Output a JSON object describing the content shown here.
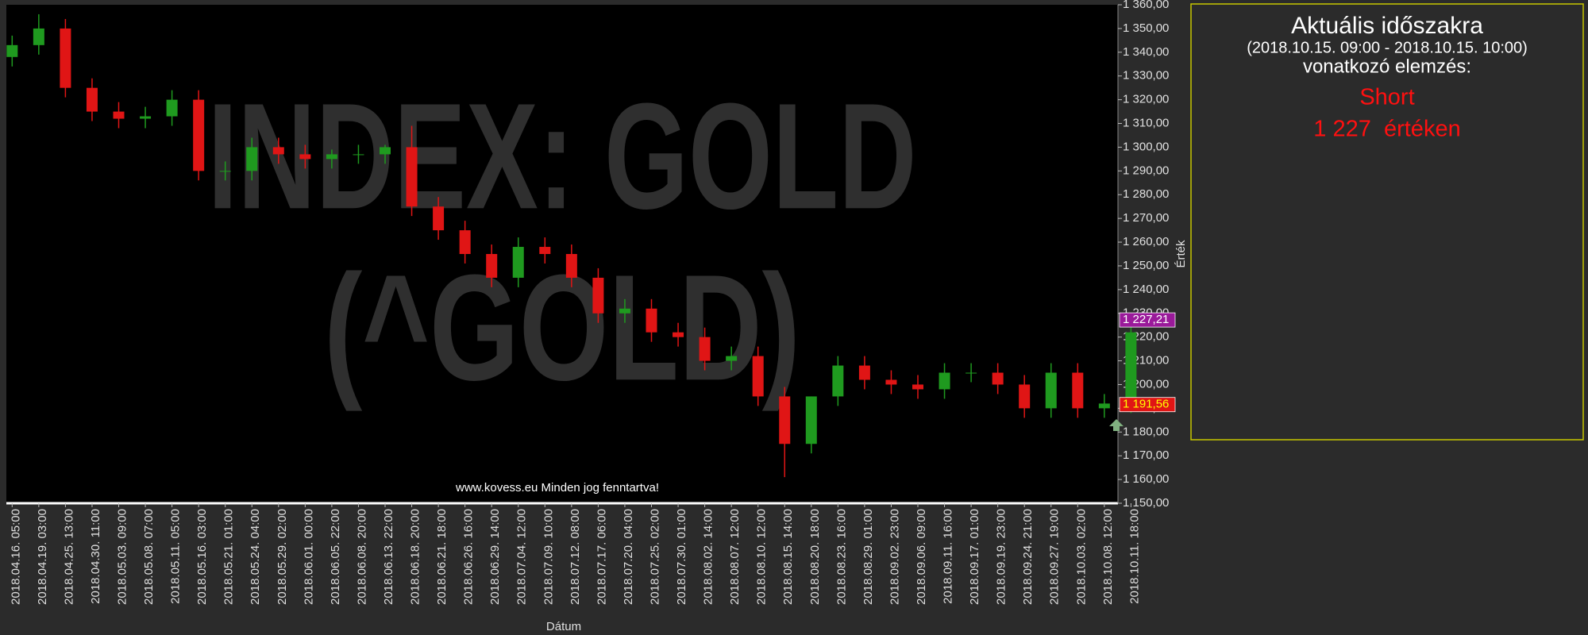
{
  "chart_data": {
    "type": "candlestick",
    "watermark": [
      "INDEX: GOLD",
      "(^GOLD)"
    ],
    "copyright": "www.kovess.eu Minden jog fenntartva!",
    "x_label": "Dátum",
    "y_label": "Érték",
    "categories": [
      "2018.04.16. 05:00",
      "2018.04.19. 03:00",
      "2018.04.25. 13:00",
      "2018.04.30. 11:00",
      "2018.05.03. 09:00",
      "2018.05.08. 07:00",
      "2018.05.11. 05:00",
      "2018.05.16. 03:00",
      "2018.05.21. 01:00",
      "2018.05.24. 04:00",
      "2018.05.29. 02:00",
      "2018.06.01. 00:00",
      "2018.06.05. 22:00",
      "2018.06.08. 20:00",
      "2018.06.13. 22:00",
      "2018.06.18. 20:00",
      "2018.06.21. 18:00",
      "2018.06.26. 16:00",
      "2018.06.29. 14:00",
      "2018.07.04. 12:00",
      "2018.07.09. 10:00",
      "2018.07.12. 08:00",
      "2018.07.17. 06:00",
      "2018.07.20. 04:00",
      "2018.07.25. 02:00",
      "2018.07.30. 01:00",
      "2018.08.02. 14:00",
      "2018.08.07. 12:00",
      "2018.08.10. 12:00",
      "2018.08.15. 14:00",
      "2018.08.20. 18:00",
      "2018.08.23. 16:00",
      "2018.08.29. 01:00",
      "2018.09.02. 23:00",
      "2018.09.06. 09:00",
      "2018.09.11. 16:00",
      "2018.09.17. 01:00",
      "2018.09.19. 23:00",
      "2018.09.24. 21:00",
      "2018.09.27. 19:00",
      "2018.10.03. 02:00",
      "2018.10.08. 12:00",
      "2018.10.11. 18:00"
    ],
    "open": [
      1338,
      1343,
      1350,
      1325,
      1315,
      1312,
      1313,
      1320,
      1290,
      1290,
      1300,
      1297,
      1295,
      1297,
      1297,
      1300,
      1275,
      1265,
      1255,
      1245,
      1258,
      1255,
      1245,
      1230,
      1232,
      1222,
      1220,
      1210,
      1212,
      1195,
      1175,
      1195,
      1208,
      1202,
      1200,
      1198,
      1205,
      1205,
      1200,
      1190,
      1205,
      1190,
      1192
    ],
    "high": [
      1347,
      1356,
      1354,
      1329,
      1319,
      1317,
      1324,
      1324,
      1294,
      1304,
      1304,
      1301,
      1299,
      1301,
      1301,
      1309,
      1279,
      1269,
      1259,
      1262,
      1262,
      1259,
      1249,
      1236,
      1236,
      1226,
      1224,
      1216,
      1216,
      1199,
      1195,
      1212,
      1212,
      1206,
      1204,
      1209,
      1209,
      1209,
      1204,
      1209,
      1209,
      1196,
      1228
    ],
    "low": [
      1334,
      1339,
      1321,
      1311,
      1308,
      1308,
      1309,
      1286,
      1286,
      1286,
      1293,
      1291,
      1291,
      1293,
      1293,
      1271,
      1261,
      1251,
      1241,
      1241,
      1251,
      1241,
      1226,
      1226,
      1218,
      1216,
      1206,
      1206,
      1191,
      1161,
      1171,
      1191,
      1198,
      1196,
      1194,
      1194,
      1201,
      1196,
      1186,
      1186,
      1186,
      1186,
      1188
    ],
    "close": [
      1343,
      1350,
      1325,
      1315,
      1312,
      1313,
      1320,
      1290,
      1290,
      1300,
      1297,
      1295,
      1297,
      1297,
      1300,
      1275,
      1265,
      1255,
      1245,
      1258,
      1255,
      1245,
      1230,
      1232,
      1222,
      1220,
      1210,
      1212,
      1195,
      1175,
      1195,
      1208,
      1202,
      1200,
      1198,
      1205,
      1205,
      1200,
      1190,
      1205,
      1190,
      1192,
      1222
    ],
    "up_color": "#1f9a1f",
    "down_color": "#e01515",
    "ylim": [
      1150,
      1360
    ],
    "yticks": [
      {
        "value": 1150,
        "label": "1 150,00"
      },
      {
        "value": 1160,
        "label": "1 160,00"
      },
      {
        "value": 1170,
        "label": "1 170,00"
      },
      {
        "value": 1180,
        "label": "1 180,00"
      },
      {
        "value": 1190,
        "label": "1 190,00"
      },
      {
        "value": 1200,
        "label": "1 200,00"
      },
      {
        "value": 1210,
        "label": "1 210,00"
      },
      {
        "value": 1220,
        "label": "1 220,00"
      },
      {
        "value": 1230,
        "label": "1 230,00"
      },
      {
        "value": 1240,
        "label": "1 240,00"
      },
      {
        "value": 1250,
        "label": "1 250,00"
      },
      {
        "value": 1260,
        "label": "1 260,00"
      },
      {
        "value": 1270,
        "label": "1 270,00"
      },
      {
        "value": 1280,
        "label": "1 280,00"
      },
      {
        "value": 1290,
        "label": "1 290,00"
      },
      {
        "value": 1300,
        "label": "1 300,00"
      },
      {
        "value": 1310,
        "label": "1 310,00"
      },
      {
        "value": 1320,
        "label": "1 320,00"
      },
      {
        "value": 1330,
        "label": "1 330,00"
      },
      {
        "value": 1340,
        "label": "1 340,00"
      },
      {
        "value": 1350,
        "label": "1 350,00"
      },
      {
        "value": 1360,
        "label": "1 360,00"
      }
    ],
    "price_tags": [
      {
        "value": 1227.21,
        "label": "1 227,21",
        "color": "#9a1a9a",
        "text_color": "#ffffff"
      },
      {
        "value": 1191.56,
        "label": "1 191,56",
        "color": "#e01515",
        "text_color": "#ffff00"
      }
    ]
  },
  "panel": {
    "title": "Aktuális időszakra",
    "period": "(2018.10.15. 09:00 - 2018.10.15. 10:00)",
    "subtitle": "vonatkozó elemzés:",
    "signal": "Short",
    "level": "1 227  értéken"
  }
}
